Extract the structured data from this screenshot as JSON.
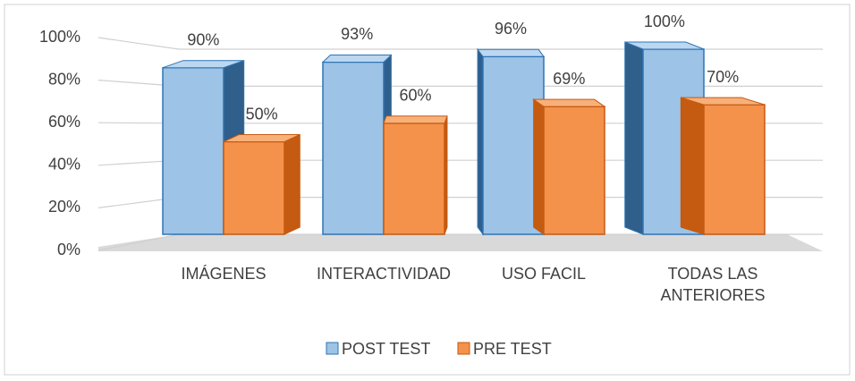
{
  "chart_data": {
    "type": "bar3d",
    "categories": [
      "IMÁGENES",
      "INTERACTIVIDAD",
      "USO FACIL",
      "TODAS LAS ANTERIORES"
    ],
    "series": [
      {
        "name": "POST TEST",
        "color": "#9dc3e6",
        "values": [
          90,
          93,
          96,
          100
        ],
        "value_labels": [
          "90%",
          "93%",
          "96%",
          "100%"
        ]
      },
      {
        "name": "PRE TEST",
        "color": "#f4914a",
        "values": [
          50,
          60,
          69,
          70
        ],
        "value_labels": [
          "50%",
          "60%",
          "69%",
          "70%"
        ]
      }
    ],
    "ylim": [
      0,
      100
    ],
    "yticks": [
      {
        "value": 0,
        "label": "0%"
      },
      {
        "value": 20,
        "label": "20%"
      },
      {
        "value": 40,
        "label": "40%"
      },
      {
        "value": 60,
        "label": "60%"
      },
      {
        "value": 80,
        "label": "80%"
      },
      {
        "value": 100,
        "label": "100%"
      }
    ],
    "grid": true,
    "legend": "bottom"
  }
}
